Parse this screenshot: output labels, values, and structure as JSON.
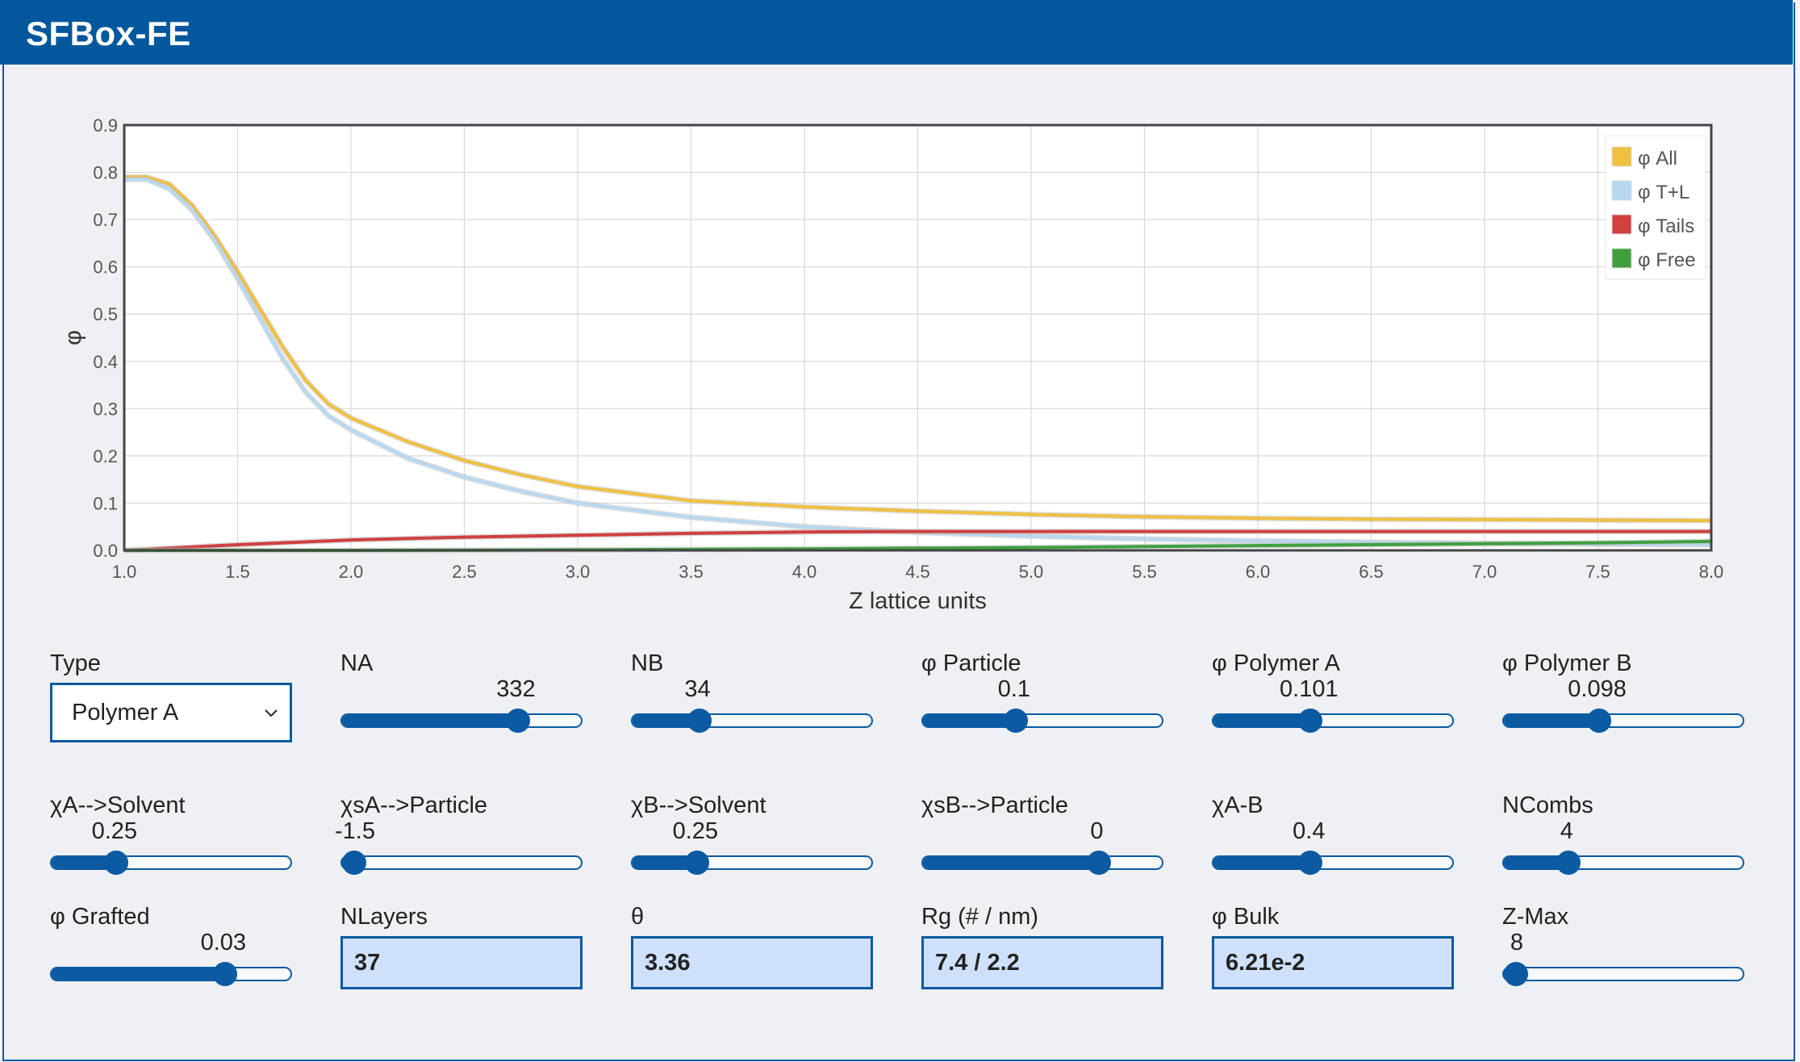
{
  "app": {
    "title": "SFBox-FE"
  },
  "chart_data": {
    "type": "line",
    "title": "",
    "xlabel": "Z lattice units",
    "ylabel": "φ",
    "xlim": [
      1.0,
      8.0
    ],
    "ylim": [
      0.0,
      0.9
    ],
    "xticks": [
      "1.0",
      "1.5",
      "2.0",
      "2.5",
      "3.0",
      "3.5",
      "4.0",
      "4.5",
      "5.0",
      "5.5",
      "6.0",
      "6.5",
      "7.0",
      "7.5",
      "8.0"
    ],
    "yticks": [
      "0.0",
      "0.1",
      "0.2",
      "0.3",
      "0.4",
      "0.5",
      "0.6",
      "0.7",
      "0.8",
      "0.9"
    ],
    "grid": true,
    "legend_position": "top-right",
    "series": [
      {
        "name": "φ All",
        "color": "#f0c040",
        "x": [
          1.0,
          1.1,
          1.2,
          1.3,
          1.4,
          1.5,
          1.6,
          1.7,
          1.8,
          1.9,
          2.0,
          2.25,
          2.5,
          2.75,
          3.0,
          3.5,
          4.0,
          4.5,
          5.0,
          5.5,
          6.0,
          6.5,
          7.0,
          7.5,
          8.0
        ],
        "y": [
          0.79,
          0.79,
          0.775,
          0.73,
          0.665,
          0.59,
          0.51,
          0.43,
          0.36,
          0.31,
          0.28,
          0.23,
          0.19,
          0.16,
          0.135,
          0.105,
          0.092,
          0.083,
          0.076,
          0.071,
          0.068,
          0.066,
          0.065,
          0.064,
          0.063
        ]
      },
      {
        "name": "φ T+L",
        "color": "#b8d8f0",
        "x": [
          1.0,
          1.1,
          1.2,
          1.3,
          1.4,
          1.5,
          1.6,
          1.7,
          1.8,
          1.9,
          2.0,
          2.25,
          2.5,
          2.75,
          3.0,
          3.5,
          4.0,
          4.5,
          5.0,
          5.5,
          6.0,
          6.5,
          7.0,
          7.5,
          8.0
        ],
        "y": [
          0.785,
          0.785,
          0.765,
          0.72,
          0.655,
          0.575,
          0.49,
          0.405,
          0.335,
          0.285,
          0.255,
          0.195,
          0.155,
          0.125,
          0.1,
          0.07,
          0.05,
          0.038,
          0.03,
          0.024,
          0.02,
          0.017,
          0.015,
          0.013,
          0.012
        ]
      },
      {
        "name": "φ Tails",
        "color": "#d04040",
        "x": [
          1.0,
          1.5,
          2.0,
          2.5,
          3.0,
          3.5,
          4.0,
          4.5,
          5.0,
          5.5,
          6.0,
          6.5,
          7.0,
          7.5,
          8.0
        ],
        "y": [
          0.0,
          0.012,
          0.022,
          0.028,
          0.032,
          0.036,
          0.039,
          0.04,
          0.04,
          0.04,
          0.04,
          0.04,
          0.04,
          0.04,
          0.04
        ]
      },
      {
        "name": "φ Free",
        "color": "#40a040",
        "x": [
          1.0,
          2.0,
          3.0,
          4.0,
          5.0,
          5.5,
          6.0,
          6.5,
          7.0,
          7.5,
          8.0
        ],
        "y": [
          0.0,
          0.0,
          0.001,
          0.003,
          0.006,
          0.008,
          0.01,
          0.012,
          0.014,
          0.016,
          0.019
        ]
      }
    ]
  },
  "controls": {
    "type": {
      "label": "Type",
      "value": "Polymer A"
    },
    "na": {
      "label": "NA",
      "value": "332",
      "fraction": 0.75
    },
    "nb": {
      "label": "NB",
      "value": "34",
      "fraction": 0.25
    },
    "phi_particle": {
      "label": "φ Particle",
      "value": "0.1",
      "fraction": 0.37
    },
    "phi_polymer_a": {
      "label": "φ Polymer A",
      "value": "0.101",
      "fraction": 0.39
    },
    "phi_polymer_b": {
      "label": "φ Polymer B",
      "value": "0.098",
      "fraction": 0.38
    },
    "chi_a_solvent": {
      "label": "χA-->Solvent",
      "value": "0.25",
      "fraction": 0.24
    },
    "chi_sa_particle": {
      "label": "χsA-->Particle",
      "value": "-1.5",
      "fraction": 0.0
    },
    "chi_b_solvent": {
      "label": "χB-->Solvent",
      "value": "0.25",
      "fraction": 0.24
    },
    "chi_sb_particle": {
      "label": "χsB-->Particle",
      "value": "0",
      "fraction": 0.75
    },
    "chi_a_b": {
      "label": "χA-B",
      "value": "0.4",
      "fraction": 0.39
    },
    "ncombs": {
      "label": "NCombs",
      "value": "4",
      "fraction": 0.24
    },
    "phi_grafted": {
      "label": "φ Grafted",
      "value": "0.03",
      "fraction": 0.74
    },
    "nlayers": {
      "label": "NLayers",
      "value": "37"
    },
    "theta": {
      "label": "θ",
      "value": "3.36"
    },
    "rg": {
      "label": "Rg (# / nm)",
      "value": "7.4 / 2.2"
    },
    "phi_bulk": {
      "label": "φ Bulk",
      "value": "6.21e-2"
    },
    "zmax": {
      "label": "Z-Max",
      "value": "8",
      "fraction": 0.0
    }
  }
}
